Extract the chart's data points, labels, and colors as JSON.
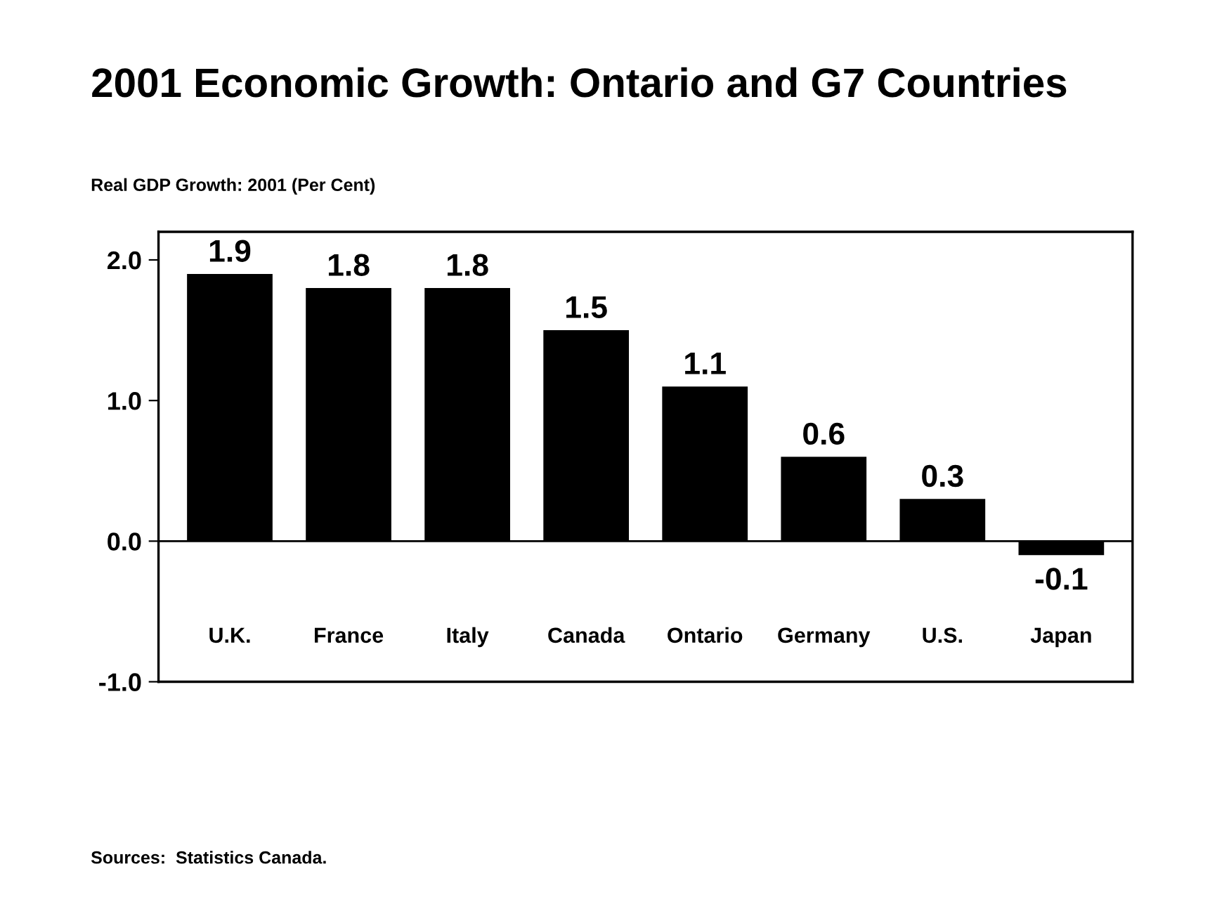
{
  "chart_data": {
    "type": "bar",
    "title": "2001 Economic Growth: Ontario and G7 Countries",
    "ylabel": "Real GDP Growth: 2001 (Per Cent)",
    "categories": [
      "U.K.",
      "France",
      "Italy",
      "Canada",
      "Ontario",
      "Germany",
      "U.S.",
      "Japan"
    ],
    "values": [
      1.9,
      1.8,
      1.8,
      1.5,
      1.1,
      0.6,
      0.3,
      -0.1
    ],
    "color": "#000000",
    "ylim": [
      -1.0,
      2.2
    ],
    "ref_lines": [
      {
        "axis": "y",
        "value": 0.0,
        "color": "#000000"
      }
    ],
    "yticks": [
      {
        "value": -1.0,
        "label": "-1.0"
      },
      {
        "value": 0.0,
        "label": "0.0"
      },
      {
        "value": 1.0,
        "label": "1.0"
      },
      {
        "value": 2.0,
        "label": "2.0"
      }
    ],
    "data_labels": true,
    "annotations": [
      "Sources:  Statistics Canada."
    ]
  }
}
